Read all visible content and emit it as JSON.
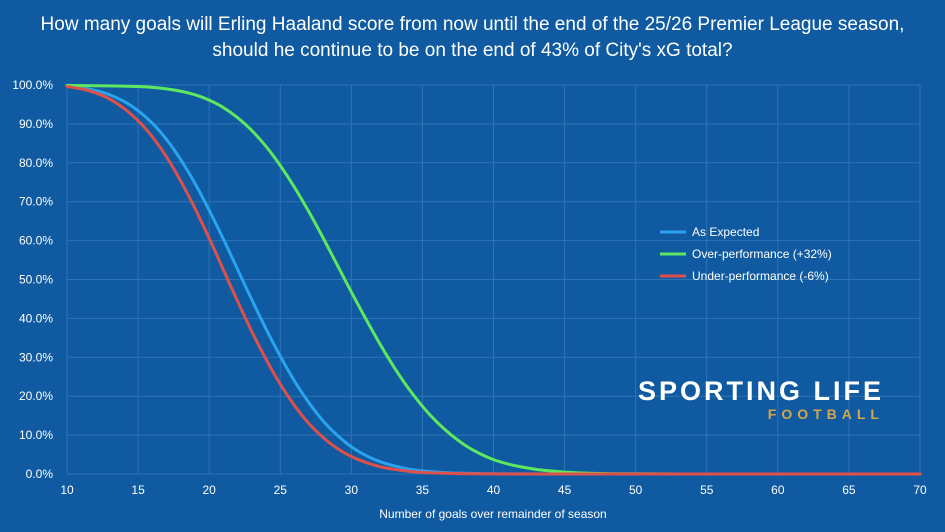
{
  "chart_data": {
    "type": "line",
    "title": "How many goals will Erling Haaland score from now until the end of the 25/26 Premier League season, should he continue to be on the end of 43% of City's xG total?",
    "xlabel": "Number of goals over remainder of season",
    "ylabel": "",
    "xlim": [
      10,
      70
    ],
    "ylim": [
      0,
      100
    ],
    "x_ticks": [
      "10",
      "15",
      "20",
      "25",
      "30",
      "35",
      "40",
      "45",
      "50",
      "55",
      "60",
      "65",
      "70"
    ],
    "y_ticks": [
      "0.0%",
      "10.0%",
      "20.0%",
      "30.0%",
      "40.0%",
      "50.0%",
      "60.0%",
      "70.0%",
      "80.0%",
      "90.0%",
      "100.0%"
    ],
    "grid": true,
    "legend_position": "right",
    "series": [
      {
        "name": "As Expected",
        "color": "#2aa4ee",
        "x": [
          10,
          11,
          12,
          13,
          14,
          15,
          16,
          17,
          18,
          19,
          20,
          21,
          22,
          23,
          24,
          25,
          26,
          27,
          28,
          29,
          30,
          31,
          32,
          33,
          34,
          35,
          36,
          37,
          38,
          39,
          40,
          42,
          45,
          50,
          55,
          60,
          65,
          70
        ],
        "y": [
          99.7,
          99.3,
          98.6,
          97.5,
          95.8,
          93.4,
          90.2,
          86.0,
          80.8,
          74.7,
          67.8,
          60.4,
          52.6,
          44.8,
          37.3,
          30.3,
          23.9,
          18.4,
          13.7,
          10.0,
          7.0,
          4.8,
          3.2,
          2.1,
          1.3,
          0.8,
          0.5,
          0.3,
          0.2,
          0.1,
          0.05,
          0.02,
          0.0,
          0.0,
          0.0,
          0.0,
          0.0,
          0.0
        ]
      },
      {
        "name": "Over-performance (+32%)",
        "color": "#5de85f",
        "x": [
          10,
          12,
          14,
          15,
          16,
          17,
          18,
          19,
          20,
          21,
          22,
          23,
          24,
          25,
          26,
          27,
          28,
          29,
          30,
          31,
          32,
          33,
          34,
          35,
          36,
          37,
          38,
          39,
          40,
          41,
          42,
          43,
          44,
          45,
          46,
          48,
          50,
          55,
          60,
          65,
          70
        ],
        "y": [
          99.9,
          99.8,
          99.7,
          99.6,
          99.4,
          99.0,
          98.4,
          97.5,
          96.1,
          94.2,
          91.6,
          88.3,
          84.2,
          79.3,
          73.7,
          67.5,
          60.8,
          53.8,
          46.8,
          40.0,
          33.5,
          27.5,
          22.1,
          17.4,
          13.4,
          10.1,
          7.4,
          5.3,
          3.7,
          2.6,
          1.8,
          1.2,
          0.8,
          0.5,
          0.3,
          0.1,
          0.05,
          0.0,
          0.0,
          0.0,
          0.0
        ]
      },
      {
        "name": "Under-performance (-6%)",
        "color": "#e0504b",
        "x": [
          10,
          11,
          12,
          13,
          14,
          15,
          16,
          17,
          18,
          19,
          20,
          21,
          22,
          23,
          24,
          25,
          26,
          27,
          28,
          29,
          30,
          31,
          32,
          33,
          34,
          35,
          36,
          37,
          38,
          40,
          45,
          50,
          55,
          60,
          65,
          70
        ],
        "y": [
          99.6,
          99.0,
          98.0,
          96.4,
          94.0,
          90.8,
          86.7,
          81.5,
          75.3,
          68.3,
          60.6,
          52.5,
          44.4,
          36.6,
          29.5,
          23.1,
          17.6,
          13.0,
          9.4,
          6.6,
          4.5,
          3.0,
          1.9,
          1.2,
          0.7,
          0.4,
          0.25,
          0.15,
          0.08,
          0.02,
          0.0,
          0.0,
          0.0,
          0.0,
          0.0,
          0.0
        ]
      }
    ]
  },
  "branding": {
    "line1": "SPORTING LIFE",
    "line2": "FOOTBALL",
    "line2_color": "#d6a64b"
  },
  "colors": {
    "background": "#0f5aa0",
    "grid": "#2f74b4"
  }
}
